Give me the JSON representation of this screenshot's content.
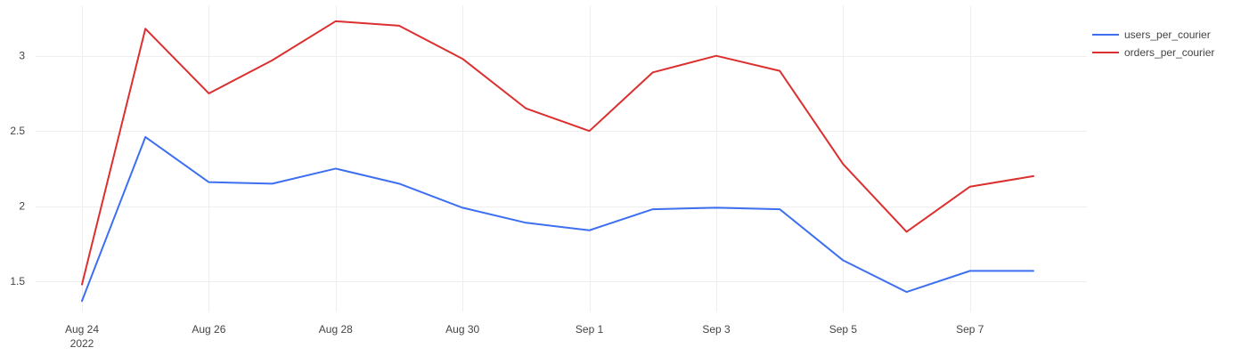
{
  "chart_data": {
    "type": "line",
    "title": "",
    "xlabel": "",
    "ylabel": "",
    "grid": true,
    "legend_position": "top-right",
    "x": [
      "2022-08-24",
      "2022-08-25",
      "2022-08-26",
      "2022-08-27",
      "2022-08-28",
      "2022-08-29",
      "2022-08-30",
      "2022-08-31",
      "2022-09-01",
      "2022-09-02",
      "2022-09-03",
      "2022-09-04",
      "2022-09-05",
      "2022-09-06",
      "2022-09-07",
      "2022-09-08"
    ],
    "xlim": [
      "2022-08-24",
      "2022-09-08"
    ],
    "ylim": [
      1.3,
      3.3
    ],
    "x_ticks": [
      {
        "x": "2022-08-24",
        "label": "Aug 24",
        "sublabel": "2022"
      },
      {
        "x": "2022-08-26",
        "label": "Aug 26",
        "sublabel": ""
      },
      {
        "x": "2022-08-28",
        "label": "Aug 28",
        "sublabel": ""
      },
      {
        "x": "2022-08-30",
        "label": "Aug 30",
        "sublabel": ""
      },
      {
        "x": "2022-09-01",
        "label": "Sep 1",
        "sublabel": ""
      },
      {
        "x": "2022-09-03",
        "label": "Sep 3",
        "sublabel": ""
      },
      {
        "x": "2022-09-05",
        "label": "Sep 5",
        "sublabel": ""
      },
      {
        "x": "2022-09-07",
        "label": "Sep 7",
        "sublabel": ""
      }
    ],
    "y_ticks": [
      {
        "value": 1.5,
        "label": "1.5"
      },
      {
        "value": 2,
        "label": "2"
      },
      {
        "value": 2.5,
        "label": "2.5"
      },
      {
        "value": 3,
        "label": "3"
      }
    ],
    "series": [
      {
        "name": "users_per_courier",
        "color": "#3d6ff0",
        "values": [
          1.37,
          2.46,
          2.16,
          2.15,
          2.25,
          2.15,
          1.99,
          1.89,
          1.84,
          1.98,
          1.99,
          1.98,
          1.64,
          1.43,
          1.57,
          1.57
        ]
      },
      {
        "name": "orders_per_courier",
        "color": "#dc2f2f",
        "values": [
          1.48,
          3.18,
          2.75,
          2.97,
          3.23,
          3.2,
          2.98,
          2.65,
          2.5,
          2.89,
          3.0,
          2.9,
          2.28,
          1.83,
          2.13,
          2.2
        ]
      }
    ]
  }
}
